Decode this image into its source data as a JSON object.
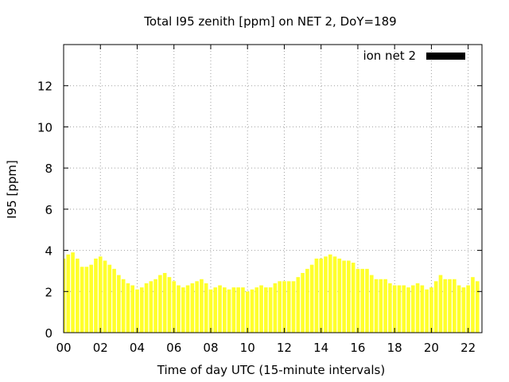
{
  "chart_data": {
    "type": "bar",
    "title": "Total I95 zenith [ppm] on NET 2, DoY=189",
    "xlabel": "Time of day UTC (15-minute intervals)",
    "ylabel": "I95 [ppm]",
    "xlim": [
      0,
      22.75
    ],
    "ylim": [
      0,
      14
    ],
    "x_ticks": [
      0,
      2,
      4,
      6,
      8,
      10,
      12,
      14,
      16,
      18,
      20,
      22
    ],
    "x_tick_labels": [
      "00",
      "02",
      "04",
      "06",
      "08",
      "10",
      "12",
      "14",
      "16",
      "18",
      "20",
      "22"
    ],
    "y_ticks": [
      0,
      2,
      4,
      6,
      8,
      10,
      12
    ],
    "y_tick_labels": [
      "0",
      "2",
      "4",
      "6",
      "8",
      "10",
      "12"
    ],
    "grid": true,
    "legend_position": "top-right",
    "bar_width_hours": 0.2,
    "series": [
      {
        "name": "ion net 2",
        "legend_swatch_color": "#000000",
        "bar_color": "#ffff2b",
        "x_start": 0,
        "x_step": 0.25,
        "values": [
          3.6,
          3.8,
          3.9,
          3.6,
          3.2,
          3.2,
          3.3,
          3.6,
          3.7,
          3.5,
          3.3,
          3.1,
          2.8,
          2.6,
          2.4,
          2.3,
          2.1,
          2.2,
          2.4,
          2.5,
          2.6,
          2.8,
          2.9,
          2.7,
          2.5,
          2.3,
          2.2,
          2.3,
          2.4,
          2.5,
          2.6,
          2.4,
          2.1,
          2.2,
          2.3,
          2.2,
          2.1,
          2.2,
          2.2,
          2.2,
          2.0,
          2.1,
          2.2,
          2.3,
          2.2,
          2.2,
          2.4,
          2.5,
          2.5,
          2.5,
          2.5,
          2.7,
          2.9,
          3.1,
          3.3,
          3.6,
          3.6,
          3.7,
          3.8,
          3.7,
          3.6,
          3.5,
          3.5,
          3.4,
          3.1,
          3.1,
          3.1,
          2.8,
          2.6,
          2.6,
          2.6,
          2.4,
          2.3,
          2.3,
          2.3,
          2.2,
          2.3,
          2.4,
          2.3,
          2.1,
          2.2,
          2.5,
          2.8,
          2.6,
          2.6,
          2.6,
          2.3,
          2.2,
          2.3,
          2.7,
          2.5
        ]
      }
    ]
  }
}
